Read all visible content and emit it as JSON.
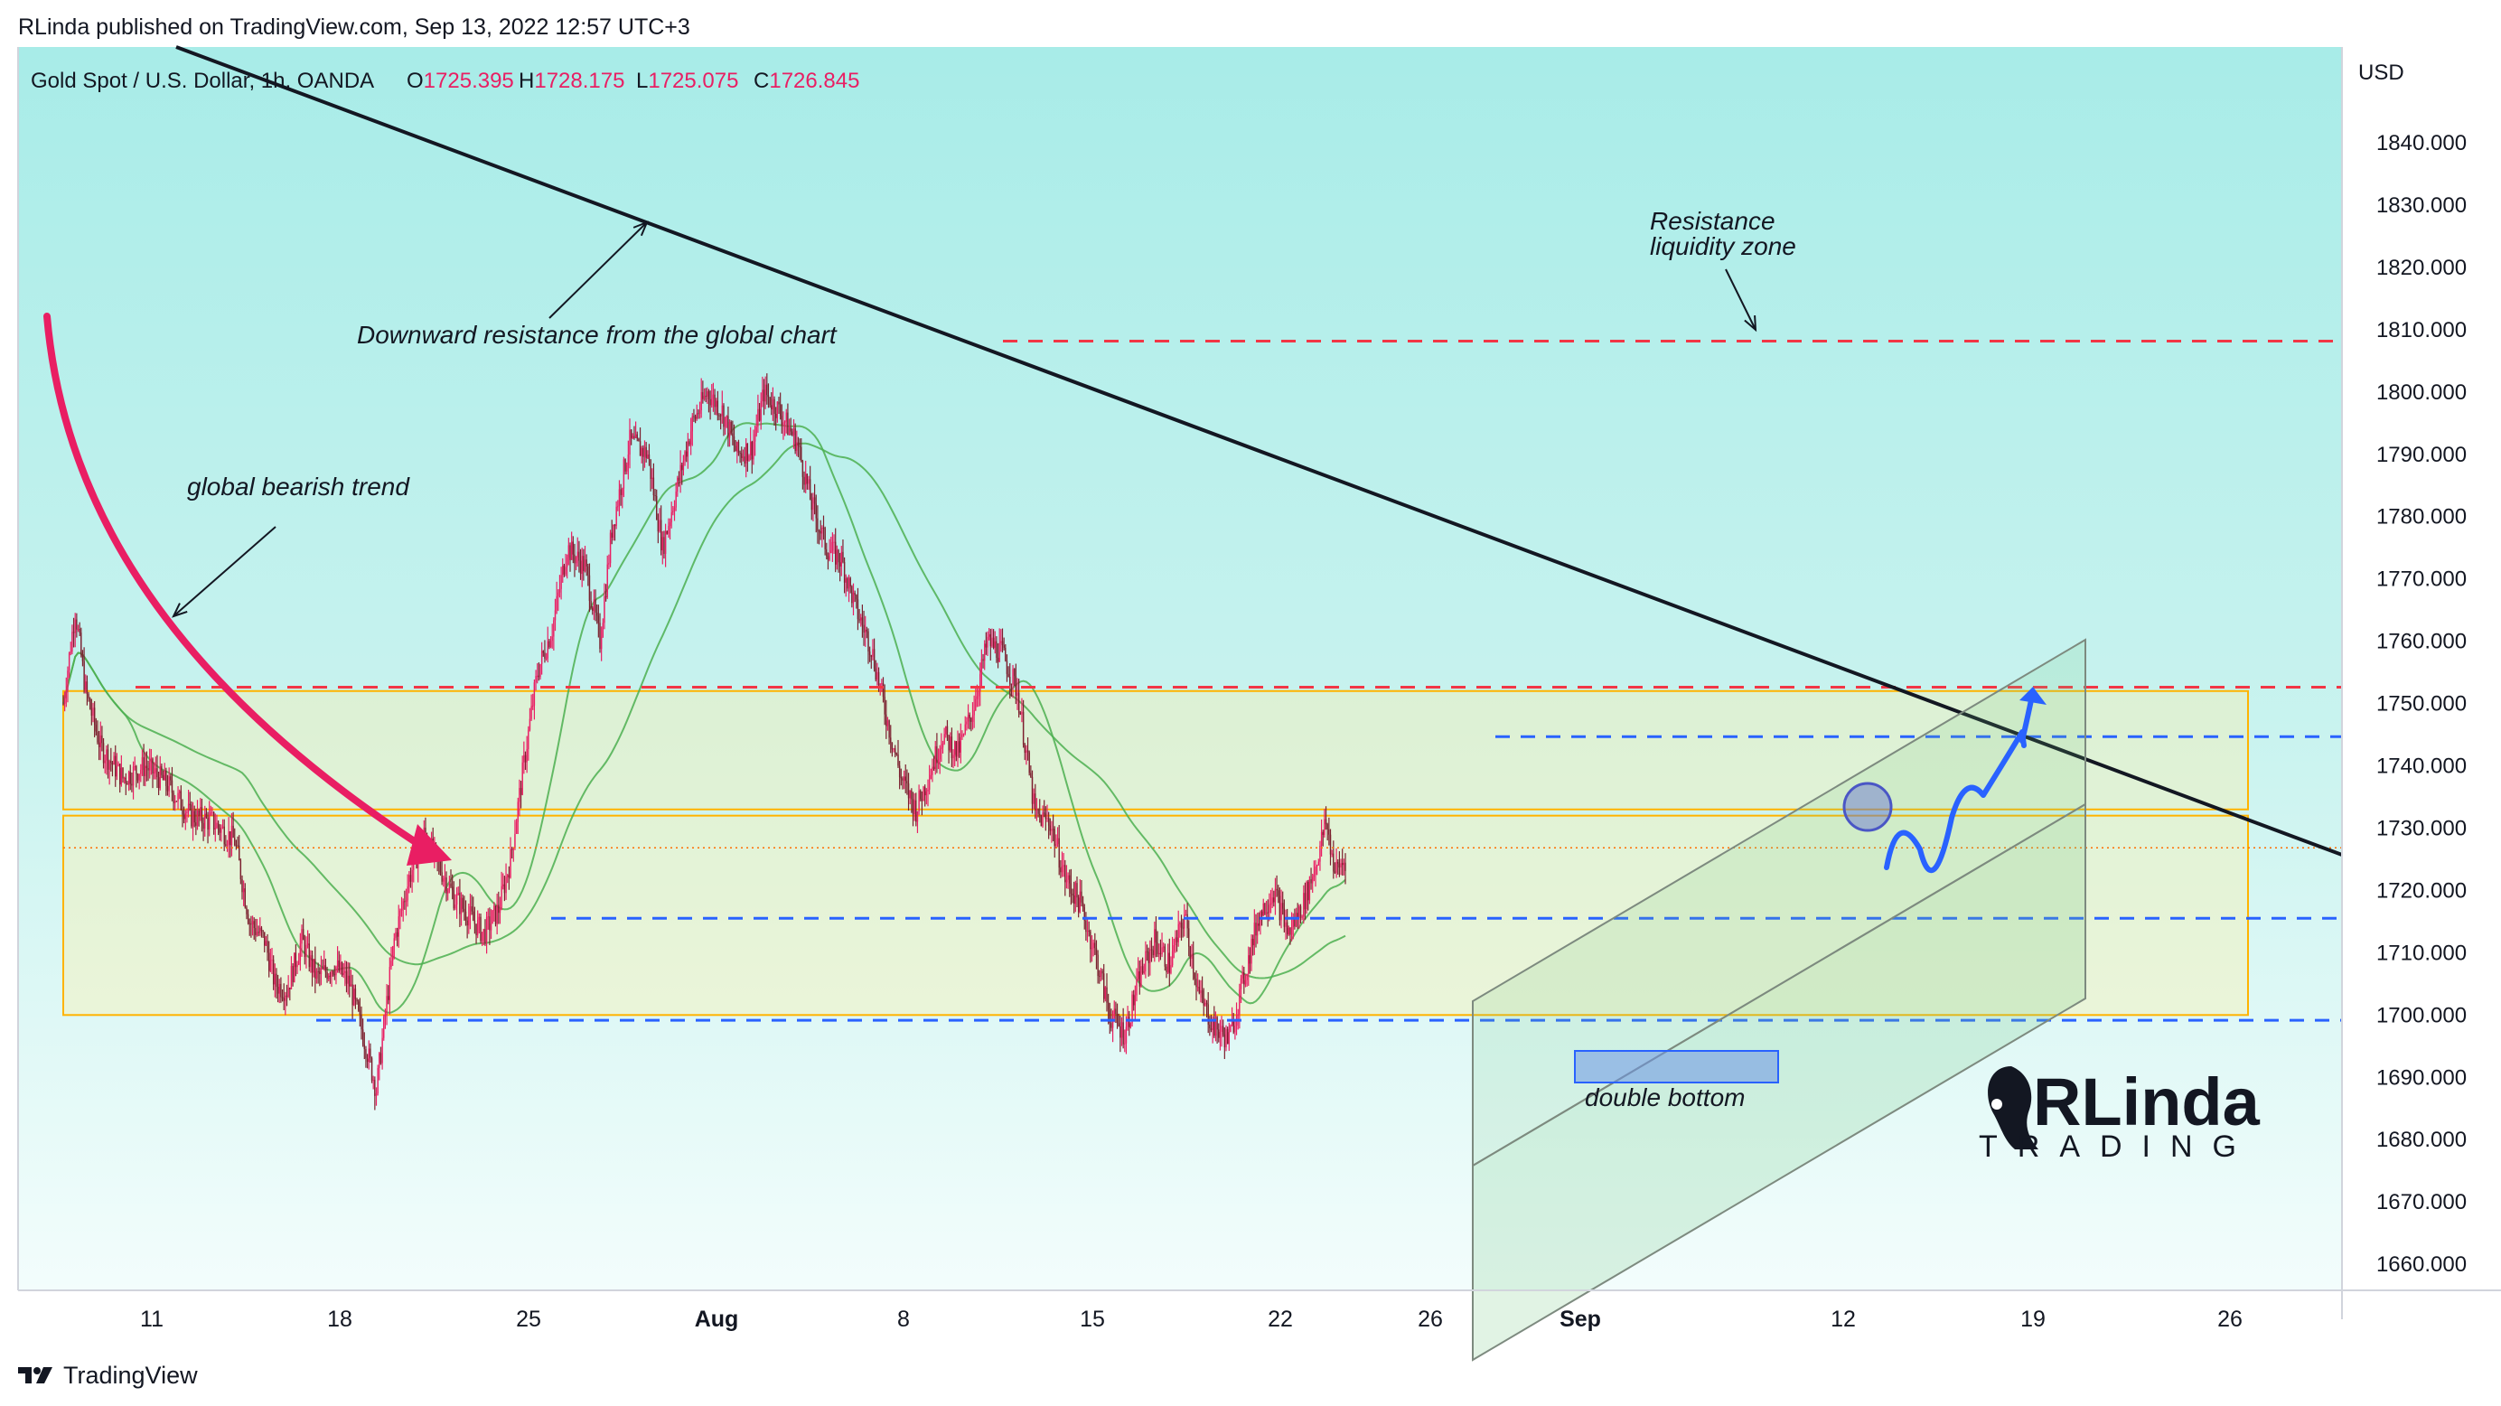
{
  "header": {
    "published": "RLinda published on TradingView.com, Sep 13, 2022 12:57 UTC+3"
  },
  "footer": {
    "brand": "TradingView",
    "logo_icon": "tradingview-logo-icon"
  },
  "chart_data": {
    "type": "candlestick",
    "symbol": "Gold Spot / U.S. Dollar, 1h, OANDA",
    "ohlc": {
      "o_label": "O",
      "o": "1725.395",
      "h_label": "H",
      "h": "1728.175",
      "l_label": "L",
      "l": "1725.075",
      "c_label": "C",
      "c": "1726.845"
    },
    "currency": "USD",
    "ylim": [
      1655,
      1855
    ],
    "y_ticks": [
      "1840.000",
      "1830.000",
      "1820.000",
      "1810.000",
      "1800.000",
      "1790.000",
      "1780.000",
      "1770.000",
      "1760.000",
      "1750.000",
      "1740.000",
      "1730.000",
      "1720.000",
      "1710.000",
      "1700.000",
      "1690.000",
      "1680.000",
      "1670.000",
      "1660.000"
    ],
    "x_ticks": [
      {
        "label": "11",
        "bold": false
      },
      {
        "label": "18",
        "bold": false
      },
      {
        "label": "25",
        "bold": false
      },
      {
        "label": "Aug",
        "bold": true
      },
      {
        "label": "8",
        "bold": false
      },
      {
        "label": "15",
        "bold": false
      },
      {
        "label": "22",
        "bold": false
      },
      {
        "label": "26",
        "bold": false
      },
      {
        "label": "Sep",
        "bold": true
      },
      {
        "label": "12",
        "bold": false
      },
      {
        "label": "19",
        "bold": false
      },
      {
        "label": "26",
        "bold": false
      }
    ],
    "price_path": [
      [
        0,
        1750
      ],
      [
        8,
        1765
      ],
      [
        15,
        1752
      ],
      [
        25,
        1743
      ],
      [
        40,
        1738
      ],
      [
        55,
        1740
      ],
      [
        70,
        1737
      ],
      [
        85,
        1732
      ],
      [
        100,
        1731
      ],
      [
        115,
        1728
      ],
      [
        125,
        1715
      ],
      [
        135,
        1712
      ],
      [
        142,
        1705
      ],
      [
        150,
        1704
      ],
      [
        160,
        1712
      ],
      [
        170,
        1706
      ],
      [
        182,
        1708
      ],
      [
        192,
        1705
      ],
      [
        202,
        1696
      ],
      [
        210,
        1688
      ],
      [
        222,
        1712
      ],
      [
        232,
        1722
      ],
      [
        242,
        1729
      ],
      [
        250,
        1725
      ],
      [
        262,
        1719
      ],
      [
        272,
        1716
      ],
      [
        282,
        1713
      ],
      [
        292,
        1717
      ],
      [
        300,
        1725
      ],
      [
        310,
        1742
      ],
      [
        318,
        1755
      ],
      [
        328,
        1762
      ],
      [
        338,
        1775
      ],
      [
        350,
        1772
      ],
      [
        360,
        1760
      ],
      [
        368,
        1778
      ],
      [
        380,
        1792
      ],
      [
        392,
        1790
      ],
      [
        402,
        1775
      ],
      [
        412,
        1785
      ],
      [
        422,
        1795
      ],
      [
        432,
        1800
      ],
      [
        442,
        1797
      ],
      [
        452,
        1790
      ],
      [
        462,
        1791
      ],
      [
        470,
        1800
      ],
      [
        480,
        1797
      ],
      [
        492,
        1792
      ],
      [
        502,
        1782
      ],
      [
        512,
        1775
      ],
      [
        522,
        1773
      ],
      [
        532,
        1765
      ],
      [
        542,
        1759
      ],
      [
        552,
        1748
      ],
      [
        562,
        1738
      ],
      [
        572,
        1733
      ],
      [
        580,
        1738
      ],
      [
        590,
        1745
      ],
      [
        600,
        1742
      ],
      [
        610,
        1749
      ],
      [
        620,
        1760
      ],
      [
        630,
        1758
      ],
      [
        640,
        1752
      ],
      [
        652,
        1732
      ],
      [
        662,
        1731
      ],
      [
        672,
        1722
      ],
      [
        682,
        1718
      ],
      [
        692,
        1710
      ],
      [
        702,
        1700
      ],
      [
        712,
        1697
      ],
      [
        722,
        1706
      ],
      [
        732,
        1712
      ],
      [
        742,
        1708
      ],
      [
        752,
        1716
      ],
      [
        762,
        1703
      ],
      [
        772,
        1698
      ],
      [
        782,
        1696
      ],
      [
        792,
        1706
      ],
      [
        802,
        1716
      ],
      [
        812,
        1720
      ],
      [
        822,
        1713
      ],
      [
        832,
        1718
      ],
      [
        840,
        1724
      ],
      [
        847,
        1731
      ],
      [
        853,
        1723
      ],
      [
        860,
        1725
      ]
    ],
    "levels": [
      {
        "value": 1808.171,
        "label": "1808.171",
        "color": "#f23645",
        "style": "red-dashed"
      },
      {
        "value": 1752.615,
        "label": "1752.615",
        "color": "#f23645",
        "style": "red-dashed"
      },
      {
        "value": 1744.678,
        "label": "1744.678",
        "color": "#2962ff",
        "style": "blue-dashed"
      },
      {
        "value": 1726.845,
        "label": "1726.845",
        "color": "#ff6d00",
        "style": "current-price"
      },
      {
        "value": 1715.52,
        "label": "1715.520",
        "color": "#2962ff",
        "style": "blue-dashed"
      },
      {
        "value": 1699.152,
        "label": "1699.152",
        "color": "#2962ff",
        "style": "blue-dashed"
      }
    ],
    "zones": [
      {
        "top": 1752,
        "bottom": 1733
      },
      {
        "top": 1732,
        "bottom": 1700
      }
    ],
    "annotations": {
      "trendline": "Downward resistance from the global chart",
      "bearish": "global bearish trend",
      "resistance_line1": "Resistance",
      "resistance_line2": "liquidity zone",
      "double_bottom": "double bottom"
    },
    "watermark": {
      "top": "RLinda",
      "bottom": "TRADING"
    },
    "colors": {
      "bull": "#e91e63",
      "bear": "#7b1f2e",
      "ma": "#4caf50",
      "accent": "#2962ff",
      "zone": "#ffb300"
    }
  }
}
